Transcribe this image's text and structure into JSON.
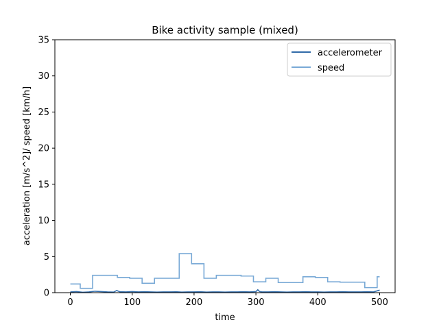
{
  "chart_data": {
    "type": "line",
    "title": "Bike activity sample (mixed)",
    "xlabel": "time",
    "ylabel": "acceleration [m/s^2]/ speed [km/h]",
    "xlim": [
      -25,
      525
    ],
    "ylim": [
      0,
      35
    ],
    "xticks": [
      0,
      100,
      200,
      300,
      400,
      500
    ],
    "yticks": [
      0,
      5,
      10,
      15,
      20,
      25,
      30,
      35
    ],
    "grid": false,
    "legend_position": "top-right",
    "series": [
      {
        "name": "accelerometer",
        "color": "#2f6aa8",
        "x": [
          0,
          10,
          20,
          30,
          40,
          50,
          60,
          70,
          75,
          80,
          90,
          100,
          110,
          120,
          130,
          140,
          150,
          160,
          170,
          180,
          190,
          200,
          210,
          220,
          230,
          240,
          250,
          260,
          270,
          280,
          290,
          300,
          303,
          306,
          310,
          320,
          330,
          340,
          350,
          360,
          370,
          380,
          390,
          400,
          410,
          420,
          430,
          440,
          450,
          460,
          470,
          480,
          490,
          500
        ],
        "y": [
          0.1,
          0.15,
          0.05,
          0.1,
          0.2,
          0.15,
          0.1,
          0.08,
          0.3,
          0.12,
          0.1,
          0.15,
          0.1,
          0.12,
          0.1,
          0.08,
          0.1,
          0.1,
          0.12,
          0.08,
          0.1,
          0.1,
          0.12,
          0.08,
          0.1,
          0.1,
          0.08,
          0.1,
          0.1,
          0.12,
          0.1,
          0.15,
          0.4,
          0.15,
          0.1,
          0.1,
          0.12,
          0.1,
          0.08,
          0.1,
          0.1,
          0.12,
          0.1,
          0.1,
          0.08,
          0.1,
          0.1,
          0.12,
          0.1,
          0.1,
          0.1,
          0.12,
          0.1,
          0.35
        ]
      },
      {
        "name": "speed",
        "color": "#78a9d6",
        "x": [
          0,
          16,
          16,
          36,
          36,
          76,
          76,
          96,
          96,
          116,
          116,
          136,
          136,
          176,
          176,
          196,
          196,
          216,
          216,
          236,
          236,
          276,
          276,
          296,
          296,
          316,
          316,
          336,
          336,
          376,
          376,
          396,
          396,
          416,
          416,
          436,
          436,
          476,
          476,
          496,
          496,
          500
        ],
        "y": [
          1.2,
          1.2,
          0.6,
          0.6,
          2.4,
          2.4,
          2.1,
          2.1,
          2.0,
          2.0,
          1.3,
          1.3,
          2.0,
          2.0,
          5.4,
          5.4,
          4.0,
          4.0,
          2.0,
          2.0,
          2.4,
          2.4,
          2.3,
          2.3,
          1.5,
          1.5,
          2.0,
          2.0,
          1.4,
          1.4,
          2.2,
          2.2,
          2.1,
          2.1,
          1.5,
          1.5,
          1.45,
          1.45,
          0.7,
          0.7,
          2.2,
          2.2
        ]
      }
    ]
  }
}
